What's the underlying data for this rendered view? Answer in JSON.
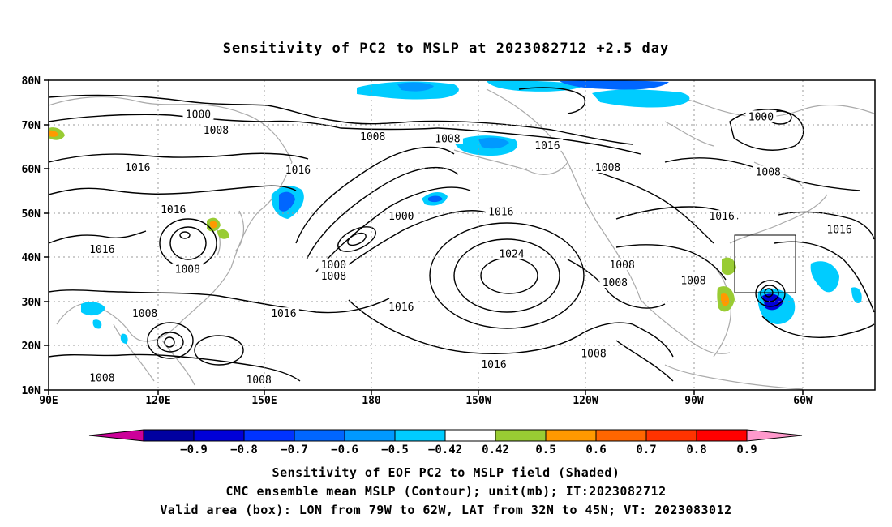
{
  "title": "Sensitivity of PC2 to MSLP at 2023082712 +2.5 day",
  "map": {
    "lon_labels": [
      "90E",
      "120E",
      "150E",
      "180",
      "150W",
      "120W",
      "90W",
      "60W"
    ],
    "lat_labels": [
      "80N",
      "70N",
      "60N",
      "50N",
      "40N",
      "30N",
      "20N",
      "10N"
    ],
    "contour_labels": [
      {
        "text": "1000",
        "lon": 132,
        "lat": 72
      },
      {
        "text": "1008",
        "lon": 137,
        "lat": 68.5
      },
      {
        "text": "1008",
        "lon": 181,
        "lat": 67
      },
      {
        "text": "1008",
        "lon": 202,
        "lat": 66.5
      },
      {
        "text": "1016",
        "lon": 230,
        "lat": 65
      },
      {
        "text": "1008",
        "lon": 247,
        "lat": 60
      },
      {
        "text": "1000",
        "lon": 290,
        "lat": 71.5
      },
      {
        "text": "1008",
        "lon": 292,
        "lat": 59
      },
      {
        "text": "1016",
        "lon": 279,
        "lat": 49
      },
      {
        "text": "1016",
        "lon": 312,
        "lat": 46
      },
      {
        "text": "1016",
        "lon": 115,
        "lat": 60
      },
      {
        "text": "1016",
        "lon": 160,
        "lat": 59.5
      },
      {
        "text": "1016",
        "lon": 125,
        "lat": 50.5
      },
      {
        "text": "1016",
        "lon": 105,
        "lat": 41.5
      },
      {
        "text": "1008",
        "lon": 129,
        "lat": 37
      },
      {
        "text": "1008",
        "lon": 117,
        "lat": 27
      },
      {
        "text": "1016",
        "lon": 156,
        "lat": 27
      },
      {
        "text": "1000",
        "lon": 189,
        "lat": 49
      },
      {
        "text": "1000",
        "lon": 170,
        "lat": 38
      },
      {
        "text": "1008",
        "lon": 170,
        "lat": 35.5
      },
      {
        "text": "1016",
        "lon": 217,
        "lat": 50
      },
      {
        "text": "1024",
        "lon": 220,
        "lat": 40.5
      },
      {
        "text": "1016",
        "lon": 189,
        "lat": 28.5
      },
      {
        "text": "1016",
        "lon": 215,
        "lat": 15.5
      },
      {
        "text": "1008",
        "lon": 251,
        "lat": 38
      },
      {
        "text": "1008",
        "lon": 249,
        "lat": 34
      },
      {
        "text": "1008",
        "lon": 271,
        "lat": 34.5
      },
      {
        "text": "1008",
        "lon": 243,
        "lat": 18
      },
      {
        "text": "1008",
        "lon": 105,
        "lat": 12.5
      },
      {
        "text": "1008",
        "lon": 149,
        "lat": 12
      }
    ]
  },
  "colorbar": {
    "tick_labels": [
      "-0.9",
      "-0.8",
      "-0.7",
      "-0.6",
      "-0.5",
      "-0.42",
      "0.42",
      "0.5",
      "0.6",
      "0.7",
      "0.8",
      "0.9"
    ],
    "colors": [
      "#0000a0",
      "#0000d8",
      "#0033ff",
      "#0066ff",
      "#0099ff",
      "#00ccff",
      "#ffffff",
      "#99cc33",
      "#ff9900",
      "#ff6600",
      "#ff3300",
      "#ff0000"
    ],
    "low_end_color": "#cc0099",
    "high_end_color": "#ff99cc"
  },
  "caption": {
    "line1": "Sensitivity of EOF PC2 to MSLP field (Shaded)",
    "line2": "CMC ensemble mean MSLP (Contour); unit(mb); IT:2023082712",
    "line3": "Valid area (box): LON from 79W to 62W, LAT from 32N to 45N; VT: 2023083012"
  }
}
